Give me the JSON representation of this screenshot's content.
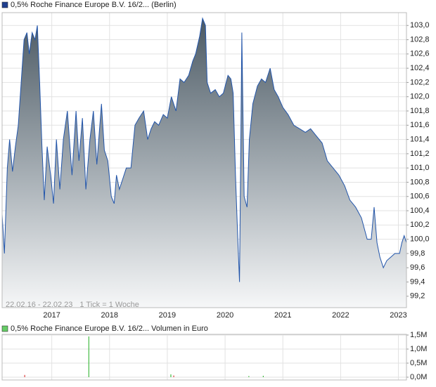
{
  "chart_data": [
    {
      "type": "area",
      "title": "0,5% Roche Finance Europe B.V. 16/2... (Berlin)",
      "annotations": [
        "22.02.16 - 22.02.23",
        "1 Tick = 1 Woche"
      ],
      "color": "#2255aa",
      "legend_color": "#1f3f8f",
      "x": [
        2016.14,
        2016.18,
        2016.23,
        2016.27,
        2016.32,
        2016.37,
        2016.42,
        2016.47,
        2016.52,
        2016.57,
        2016.61,
        2016.66,
        2016.71,
        2016.75,
        2016.79,
        2016.83,
        2016.87,
        2016.92,
        2016.98,
        2017.03,
        2017.08,
        2017.14,
        2017.2,
        2017.27,
        2017.35,
        2017.42,
        2017.47,
        2017.53,
        2017.59,
        2017.66,
        2017.72,
        2017.78,
        2017.86,
        2017.91,
        2017.97,
        2018.03,
        2018.08,
        2018.12,
        2018.17,
        2018.23,
        2018.29,
        2018.37,
        2018.44,
        2018.51,
        2018.59,
        2018.66,
        2018.72,
        2018.78,
        2018.85,
        2018.93,
        2019.0,
        2019.07,
        2019.15,
        2019.22,
        2019.29,
        2019.37,
        2019.44,
        2019.49,
        2019.56,
        2019.61,
        2019.66,
        2019.69,
        2019.75,
        2019.83,
        2019.9,
        2019.97,
        2020.05,
        2020.1,
        2020.14,
        2020.18,
        2020.22,
        2020.25,
        2020.29,
        2020.33,
        2020.38,
        2020.42,
        2020.48,
        2020.56,
        2020.63,
        2020.7,
        2020.78,
        2020.85,
        2020.92,
        2021.0,
        2021.09,
        2021.19,
        2021.29,
        2021.39,
        2021.48,
        2021.58,
        2021.68,
        2021.77,
        2021.87,
        2021.97,
        2022.07,
        2022.16,
        2022.26,
        2022.36,
        2022.46,
        2022.53,
        2022.58,
        2022.63,
        2022.68,
        2022.74,
        2022.8,
        2022.87,
        2022.94,
        2023.02,
        2023.06,
        2023.1,
        2023.14
      ],
      "values": [
        100.35,
        99.8,
        101.0,
        101.4,
        100.95,
        101.3,
        101.6,
        102.2,
        102.8,
        102.9,
        102.6,
        102.9,
        102.8,
        103.0,
        102.2,
        101.3,
        100.55,
        101.3,
        100.9,
        100.5,
        101.4,
        100.7,
        101.4,
        101.8,
        100.9,
        101.8,
        101.1,
        101.7,
        100.7,
        101.4,
        101.8,
        101.05,
        101.9,
        101.25,
        101.1,
        100.6,
        100.5,
        100.9,
        100.7,
        100.85,
        101.0,
        101.0,
        101.6,
        101.7,
        101.8,
        101.4,
        101.55,
        101.65,
        101.6,
        101.75,
        101.7,
        102.0,
        101.8,
        102.25,
        102.2,
        102.3,
        102.5,
        102.6,
        102.85,
        103.1,
        103.0,
        102.2,
        102.05,
        102.1,
        102.0,
        102.05,
        102.3,
        102.25,
        102.05,
        100.9,
        100.0,
        99.4,
        102.9,
        100.6,
        100.45,
        101.4,
        101.9,
        102.15,
        102.25,
        102.2,
        102.4,
        102.1,
        102.0,
        101.85,
        101.75,
        101.6,
        101.55,
        101.5,
        101.55,
        101.45,
        101.35,
        101.1,
        101.0,
        100.9,
        100.75,
        100.55,
        100.45,
        100.3,
        100.0,
        100.0,
        100.45,
        99.95,
        99.75,
        99.6,
        99.7,
        99.75,
        99.8,
        99.8,
        99.95,
        100.05,
        99.95
      ],
      "xlim": [
        2016.14,
        2023.14
      ],
      "xticks": [
        2017,
        2018,
        2019,
        2020,
        2021,
        2022,
        2023
      ],
      "ylim": [
        99.04,
        103.18
      ],
      "yticks": [
        {
          "value": 99.2,
          "label": "99,2"
        },
        {
          "value": 99.4,
          "label": "99,4"
        },
        {
          "value": 99.6,
          "label": "99,6"
        },
        {
          "value": 99.8,
          "label": "99,8"
        },
        {
          "value": 100.0,
          "label": "100,0"
        },
        {
          "value": 100.2,
          "label": "100,2"
        },
        {
          "value": 100.4,
          "label": "100,4"
        },
        {
          "value": 100.6,
          "label": "100,6"
        },
        {
          "value": 100.8,
          "label": "100,8"
        },
        {
          "value": 101.0,
          "label": "101,0"
        },
        {
          "value": 101.2,
          "label": "101,2"
        },
        {
          "value": 101.4,
          "label": "101,4"
        },
        {
          "value": 101.6,
          "label": "101,6"
        },
        {
          "value": 101.8,
          "label": "101,8"
        },
        {
          "value": 102.0,
          "label": "102,0"
        },
        {
          "value": 102.2,
          "label": "102,2"
        },
        {
          "value": 102.4,
          "label": "102,4"
        },
        {
          "value": 102.6,
          "label": "102,6"
        },
        {
          "value": 102.8,
          "label": "102,8"
        },
        {
          "value": 103.0,
          "label": "103,0"
        }
      ],
      "grid": true
    },
    {
      "type": "bar",
      "title": "0,5% Roche Finance Europe B.V. 16/2... Volumen in Euro",
      "legend_color": "#66cc66",
      "x": [
        2016.53,
        2017.64,
        2019.06,
        2019.11,
        2020.41,
        2020.66
      ],
      "values": [
        80000,
        1450000,
        100000,
        60000,
        40000,
        50000
      ],
      "colors": [
        "#dd4444",
        "#44bb44",
        "#44bb44",
        "#dd4444",
        "#44bb44",
        "#44bb44"
      ],
      "xlim": [
        2016.14,
        2023.14
      ],
      "xticks": [
        2017,
        2018,
        2019,
        2020,
        2021,
        2022,
        2023
      ],
      "ylim": [
        0,
        1500000
      ],
      "yticks": [
        {
          "value": 0,
          "label": "0,0M"
        },
        {
          "value": 500000,
          "label": "0,5M"
        },
        {
          "value": 1000000,
          "label": "1,0M"
        },
        {
          "value": 1500000,
          "label": "1,5M"
        }
      ],
      "grid": true
    }
  ]
}
